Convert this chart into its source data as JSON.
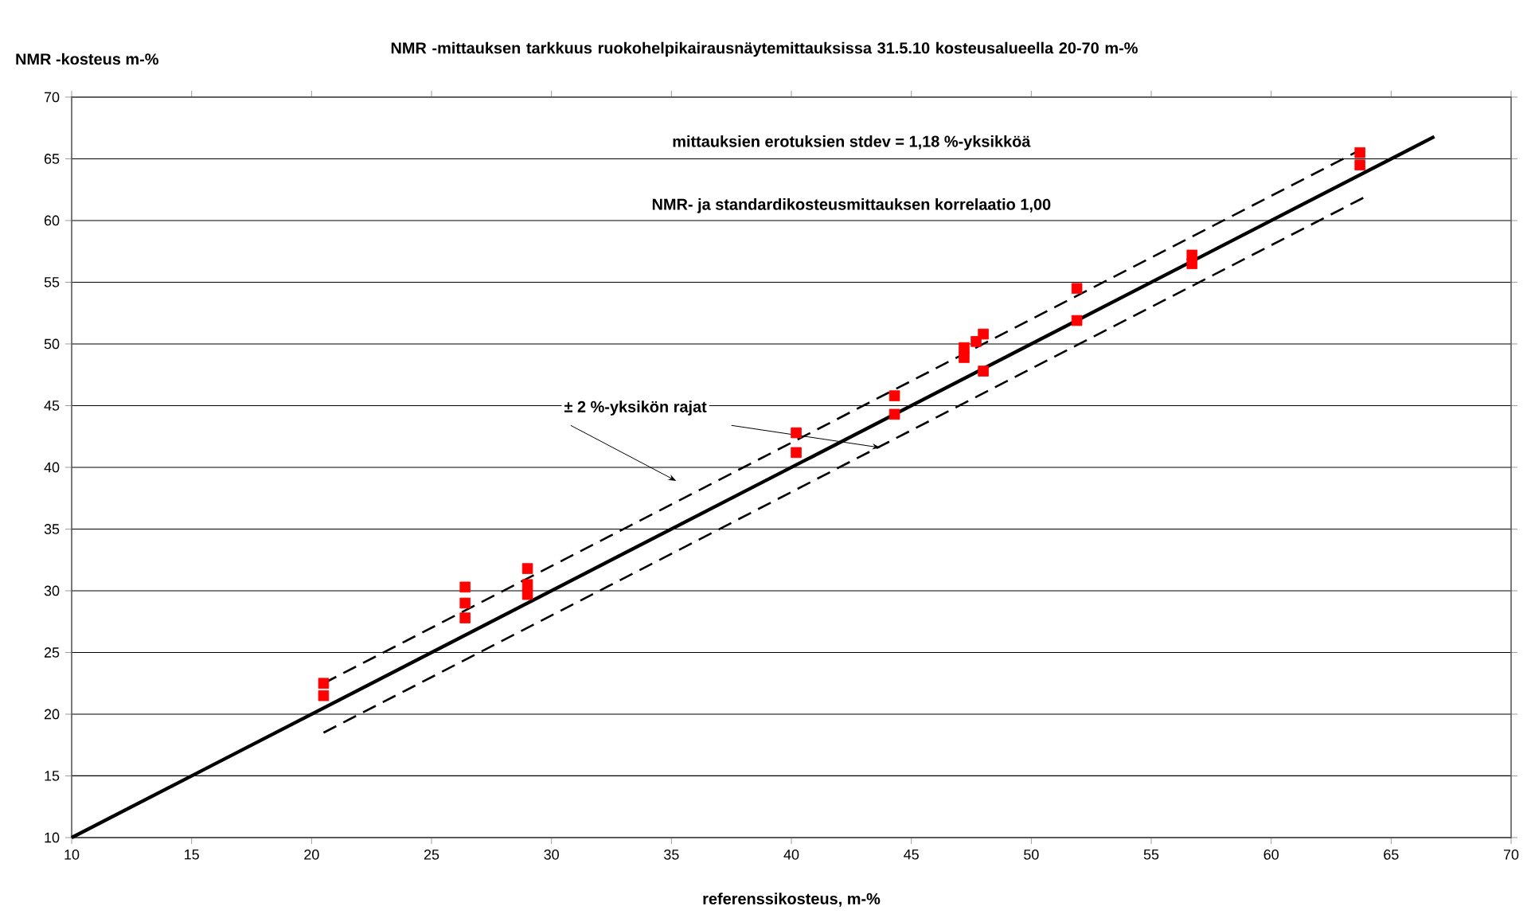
{
  "chart_data": {
    "type": "scatter",
    "title": "NMR -mittauksen tarkkuus ruokohelpikairausnäytemittauksissa 31.5.10 kosteusalueella 20-70 m-%",
    "xlabel": "referenssikosteus, m-%",
    "ylabel": "NMR -kosteus m-%",
    "annotations": [
      "mittauksien erotuksien stdev = 1,18 %-yksikköä",
      "NMR- ja standardikosteusmittauksen korrelaatio 1,00",
      "± 2 %-yksikön rajat"
    ],
    "series": [
      {
        "color": "#ff0000",
        "marker": "square",
        "x": [
          20.5,
          20.5,
          26.4,
          26.4,
          26.4,
          29,
          29,
          29,
          40.2,
          40.2,
          44.3,
          44.3,
          47.2,
          47.2,
          47.7,
          48,
          48,
          51.9,
          51.9,
          56.7,
          56.7,
          63.7,
          63.7
        ],
        "values": [
          22.5,
          21.5,
          30.3,
          29,
          27.8,
          31.8,
          30.5,
          29.7,
          42.8,
          41.2,
          45.8,
          44.3,
          49.7,
          48.9,
          50.2,
          50.8,
          47.8,
          54.5,
          51.9,
          57.2,
          56.5,
          65.5,
          64.5
        ]
      },
      {
        "type": "line",
        "color": "#000000",
        "line_style": "solid",
        "x": [
          10,
          66.8
        ],
        "values": [
          10,
          66.8
        ]
      },
      {
        "type": "line",
        "color": "#000000",
        "line_style": "dashed",
        "x": [
          20.5,
          63.8
        ],
        "values": [
          22.5,
          65.8
        ]
      },
      {
        "type": "line",
        "color": "#000000",
        "line_style": "dashed",
        "x": [
          20.5,
          64
        ],
        "values": [
          18.5,
          62
        ]
      }
    ],
    "xlim": [
      10,
      70
    ],
    "ylim": [
      10,
      70
    ],
    "xticks": [
      10,
      15,
      20,
      25,
      30,
      35,
      40,
      45,
      50,
      55,
      60,
      65,
      70
    ],
    "yticks": [
      10,
      15,
      20,
      25,
      30,
      35,
      40,
      45,
      50,
      55,
      60,
      65,
      70
    ],
    "grid": "y"
  }
}
